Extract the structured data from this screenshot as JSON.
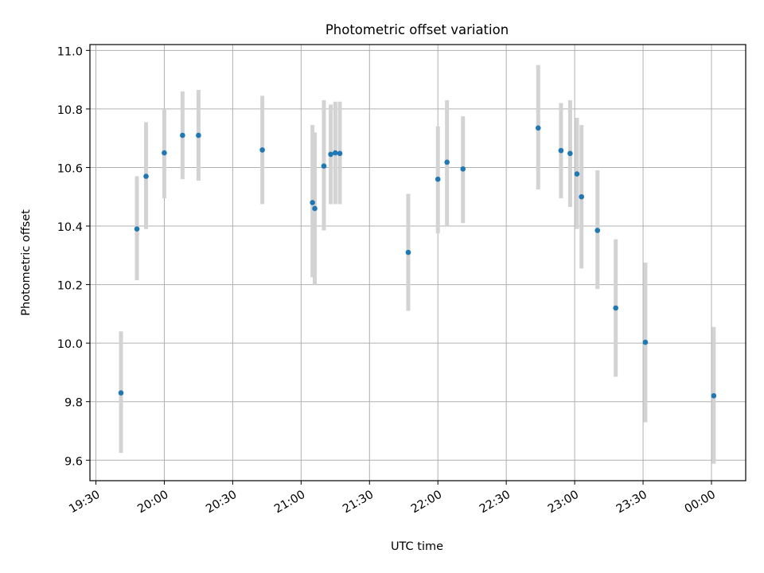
{
  "chart_data": {
    "type": "scatter",
    "title": "Photometric offset variation",
    "xlabel": "UTC time",
    "ylabel": "Photometric offset",
    "grid": true,
    "x_ticks": [
      "19:30",
      "20:00",
      "20:30",
      "21:00",
      "21:30",
      "22:00",
      "22:30",
      "23:00",
      "23:30",
      "00:00"
    ],
    "xlim": [
      "19:30",
      "00:00"
    ],
    "y_ticks": [
      "9.6",
      "9.8",
      "10.0",
      "10.2",
      "10.4",
      "10.6",
      "10.8",
      "11.0"
    ],
    "ylim": [
      9.53,
      11.02
    ],
    "colors": {
      "point": "#1f77b4",
      "errorbar": "#d3d3d3",
      "grid": "#b0b0b0"
    },
    "series": [
      {
        "points": [
          {
            "x": "19:41",
            "y": 9.83,
            "lo": 9.625,
            "hi": 10.04
          },
          {
            "x": "19:48",
            "y": 10.39,
            "lo": 10.215,
            "hi": 10.57
          },
          {
            "x": "19:52",
            "y": 10.57,
            "lo": 10.39,
            "hi": 10.755
          },
          {
            "x": "20:00",
            "y": 10.65,
            "lo": 10.495,
            "hi": 10.8
          },
          {
            "x": "20:08",
            "y": 10.71,
            "lo": 10.56,
            "hi": 10.86
          },
          {
            "x": "20:15",
            "y": 10.71,
            "lo": 10.555,
            "hi": 10.865
          },
          {
            "x": "20:43",
            "y": 10.66,
            "lo": 10.475,
            "hi": 10.845
          },
          {
            "x": "21:05",
            "y": 10.48,
            "lo": 10.225,
            "hi": 10.745
          },
          {
            "x": "21:06",
            "y": 10.46,
            "lo": 10.2,
            "hi": 10.72
          },
          {
            "x": "21:10",
            "y": 10.605,
            "lo": 10.385,
            "hi": 10.83
          },
          {
            "x": "21:13",
            "y": 10.645,
            "lo": 10.475,
            "hi": 10.815
          },
          {
            "x": "21:15",
            "y": 10.65,
            "lo": 10.475,
            "hi": 10.825
          },
          {
            "x": "21:17",
            "y": 10.648,
            "lo": 10.475,
            "hi": 10.825
          },
          {
            "x": "21:47",
            "y": 10.31,
            "lo": 10.11,
            "hi": 10.51
          },
          {
            "x": "22:00",
            "y": 10.56,
            "lo": 10.375,
            "hi": 10.74
          },
          {
            "x": "22:04",
            "y": 10.618,
            "lo": 10.4,
            "hi": 10.83
          },
          {
            "x": "22:11",
            "y": 10.595,
            "lo": 10.41,
            "hi": 10.775
          },
          {
            "x": "22:44",
            "y": 10.735,
            "lo": 10.525,
            "hi": 10.95
          },
          {
            "x": "22:54",
            "y": 10.658,
            "lo": 10.495,
            "hi": 10.82
          },
          {
            "x": "22:58",
            "y": 10.648,
            "lo": 10.465,
            "hi": 10.83
          },
          {
            "x": "23:01",
            "y": 10.578,
            "lo": 10.39,
            "hi": 10.77
          },
          {
            "x": "23:03",
            "y": 10.5,
            "lo": 10.255,
            "hi": 10.745
          },
          {
            "x": "23:10",
            "y": 10.385,
            "lo": 10.185,
            "hi": 10.59
          },
          {
            "x": "23:18",
            "y": 10.12,
            "lo": 9.885,
            "hi": 10.355
          },
          {
            "x": "23:31",
            "y": 10.003,
            "lo": 9.73,
            "hi": 10.275
          },
          {
            "x": "00:01",
            "y": 9.82,
            "lo": 9.588,
            "hi": 10.055
          }
        ]
      }
    ]
  }
}
